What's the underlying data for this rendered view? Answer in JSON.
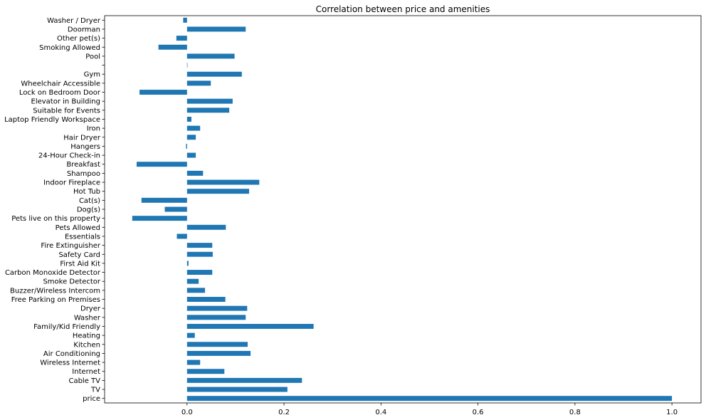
{
  "chart_data": {
    "type": "bar",
    "orientation": "horizontal",
    "title": "Correlation between price and amenities",
    "xlabel": "",
    "ylabel": "",
    "xlim": [
      -0.17,
      1.06
    ],
    "x_ticks": [
      0.0,
      0.2,
      0.4,
      0.6,
      0.8,
      1.0
    ],
    "x_tick_labels": [
      "0.0",
      "0.2",
      "0.4",
      "0.6",
      "0.8",
      "1.0"
    ],
    "grid": false,
    "legend": "none",
    "bar_color": "#1f77b4",
    "categories": [
      "price",
      "TV",
      "Cable TV",
      "Internet",
      "Wireless Internet",
      "Air Conditioning",
      "Kitchen",
      "Heating",
      "Family/Kid Friendly",
      "Washer",
      "Dryer",
      "Free Parking on Premises",
      "Buzzer/Wireless Intercom",
      "Smoke Detector",
      "Carbon Monoxide Detector",
      "First Aid Kit",
      "Safety Card",
      "Fire Extinguisher",
      "Essentials",
      "Pets Allowed",
      "Pets live on this property",
      "Dog(s)",
      "Cat(s)",
      "Hot Tub",
      "Indoor Fireplace",
      "Shampoo",
      "Breakfast",
      "24-Hour Check-in",
      "Hangers",
      "Hair Dryer",
      "Iron",
      "Laptop Friendly Workspace",
      "Suitable for Events",
      "Elevator in Building",
      "Lock on Bedroom Door",
      "Wheelchair Accessible",
      "Gym",
      "",
      "Pool",
      "Smoking Allowed",
      "Other pet(s)",
      "Doorman",
      "Washer / Dryer"
    ],
    "values": [
      1.0,
      0.207,
      0.237,
      0.077,
      0.027,
      0.131,
      0.125,
      0.016,
      0.261,
      0.121,
      0.124,
      0.079,
      0.037,
      0.024,
      0.052,
      0.003,
      0.053,
      0.052,
      -0.021,
      0.08,
      -0.113,
      -0.046,
      -0.094,
      0.128,
      0.149,
      0.033,
      -0.104,
      0.018,
      -0.002,
      0.018,
      0.027,
      0.009,
      0.087,
      0.094,
      -0.098,
      0.049,
      0.113,
      0.0,
      0.098,
      -0.059,
      -0.022,
      0.121,
      -0.008
    ]
  }
}
